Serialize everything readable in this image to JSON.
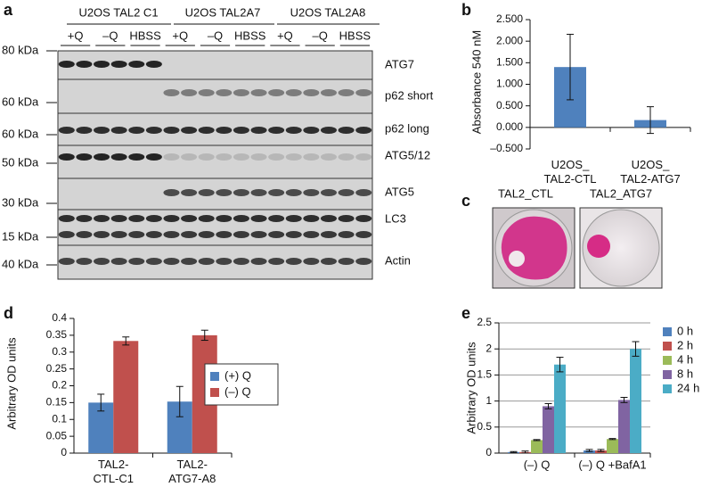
{
  "panels": [
    "a",
    "b",
    "c",
    "d",
    "e"
  ],
  "blot": {
    "groups": [
      "U2OS TAL2 C1",
      "U2OS TAL2A7",
      "U2OS TAL2A8"
    ],
    "lanes": [
      "+Q",
      "–Q",
      "HBSS",
      "+Q",
      "–Q",
      "HBSS",
      "+Q",
      "–Q",
      "HBSS"
    ],
    "markers": [
      "80 kDa",
      "60 kDa",
      "60 kDa",
      "50 kDa",
      "30 kDa",
      "15 kDa",
      "40 kDa"
    ],
    "proteins": [
      "ATG7",
      "p62 short",
      "p62 long",
      "ATG5/12",
      "ATG5",
      "LC3",
      "Actin"
    ]
  },
  "plates": [
    "TAL2_CTL",
    "TAL2_ATG7"
  ],
  "chart_data": [
    {
      "type": "bar",
      "y_label": "Absorbance 540 nM",
      "categories": [
        "U2OS_\nTAL2-CTL",
        "U2OS_\nTAL2-ATG7"
      ],
      "values": [
        1.4,
        0.17
      ],
      "errors": [
        0.76,
        0.31
      ],
      "color": "#4f81bd",
      "ylim": [
        -0.5,
        2.5
      ],
      "yticks": [
        {
          "value": -0.5,
          "label": "–0.500"
        },
        {
          "value": 0,
          "label": "0.000"
        },
        {
          "value": 0.5,
          "label": "0.500"
        },
        {
          "value": 1,
          "label": "1.000"
        },
        {
          "value": 1.5,
          "label": "1.500"
        },
        {
          "value": 2,
          "label": "2.000"
        },
        {
          "value": 2.5,
          "label": "2.500"
        }
      ],
      "grid": false
    },
    {
      "type": "bar",
      "y_label": "Arbitrary OD units",
      "categories": [
        "TAL2-\nCTL-C1",
        "TAL2-\nATG7-A8"
      ],
      "series": [
        {
          "name": "(+) Q",
          "color": "#4f81bd",
          "values": [
            0.15,
            0.153
          ],
          "errors": [
            0.025,
            0.045
          ]
        },
        {
          "name": "(–) Q",
          "color": "#c0504d",
          "values": [
            0.333,
            0.35
          ],
          "errors": [
            0.012,
            0.015
          ]
        }
      ],
      "ylim": [
        0,
        0.4
      ],
      "yticks": [
        0,
        0.05,
        0.1,
        0.15,
        0.2,
        0.25,
        0.3,
        0.35,
        0.4
      ],
      "grid": false,
      "legend": "right"
    },
    {
      "type": "bar",
      "y_label": "Arbitrary OD units",
      "categories": [
        "(–) Q",
        "(–) Q +BafA1"
      ],
      "series": [
        {
          "name": "0 h",
          "color": "#4f81bd",
          "values": [
            0.02,
            0.05
          ],
          "errors": [
            0.01,
            0.02
          ]
        },
        {
          "name": "2 h",
          "color": "#c0504d",
          "values": [
            0.02,
            0.05
          ],
          "errors": [
            0.02,
            0.02
          ]
        },
        {
          "name": "4 h",
          "color": "#9bbb59",
          "values": [
            0.25,
            0.27
          ],
          "errors": [
            0.01,
            0.01
          ]
        },
        {
          "name": "8 h",
          "color": "#8064a2",
          "values": [
            0.9,
            1.02
          ],
          "errors": [
            0.05,
            0.05
          ]
        },
        {
          "name": "24 h",
          "color": "#4bacc6",
          "values": [
            1.7,
            2.0
          ],
          "errors": [
            0.14,
            0.14
          ]
        }
      ],
      "ylim": [
        0,
        2.5
      ],
      "yticks": [
        0,
        0.5,
        1,
        1.5,
        2,
        2.5
      ],
      "grid": true,
      "legend": "right"
    }
  ]
}
